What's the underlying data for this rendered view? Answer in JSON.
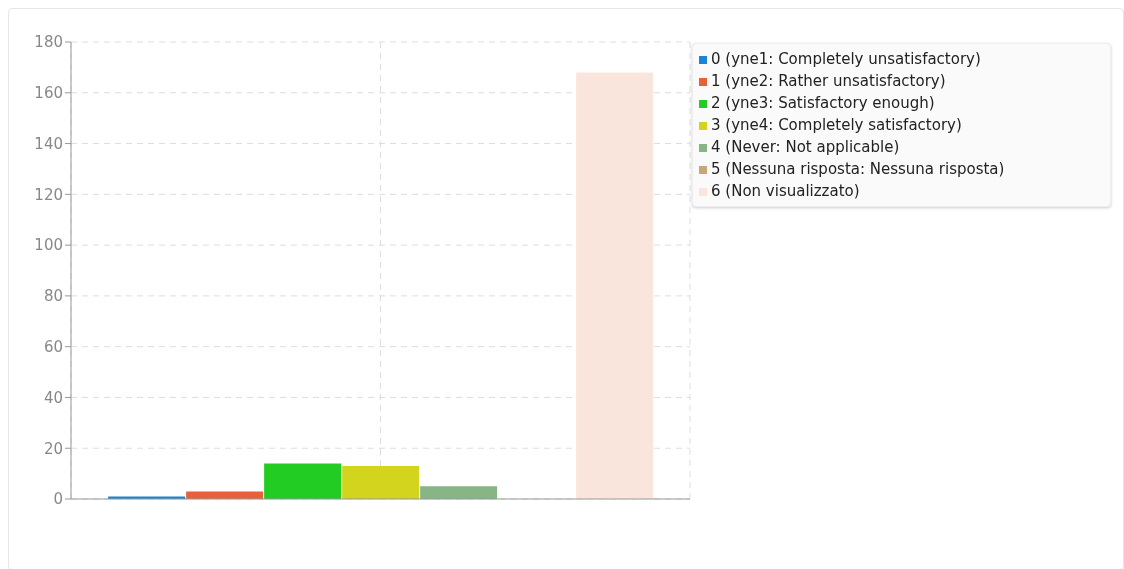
{
  "chart_data": {
    "type": "bar",
    "categories": [
      null
    ],
    "series": [
      {
        "name": "0 (yne1: Completely unsatisfactory)",
        "color": "#1a84d6",
        "values": [
          1
        ]
      },
      {
        "name": "1 (yne2: Rather unsatisfactory)",
        "color": "#e8603a",
        "values": [
          3
        ]
      },
      {
        "name": "2 (yne3: Satisfactory enough)",
        "color": "#22cc22",
        "values": [
          14
        ]
      },
      {
        "name": "3 (yne4: Completely satisfactory)",
        "color": "#d2d41e",
        "values": [
          13
        ]
      },
      {
        "name": "4 (Never: Not applicable)",
        "color": "#88b585",
        "values": [
          5
        ]
      },
      {
        "name": "5 (Nessuna risposta: Nessuna risposta)",
        "color": "#c9a57a",
        "values": [
          0
        ]
      },
      {
        "name": "6 (Non visualizzato)",
        "color": "#fae5dd",
        "values": [
          168
        ]
      }
    ],
    "ylim": [
      0,
      180
    ],
    "yticks": [
      0,
      20,
      40,
      60,
      80,
      100,
      120,
      140,
      160,
      180
    ],
    "grid": true,
    "legend": "right"
  }
}
